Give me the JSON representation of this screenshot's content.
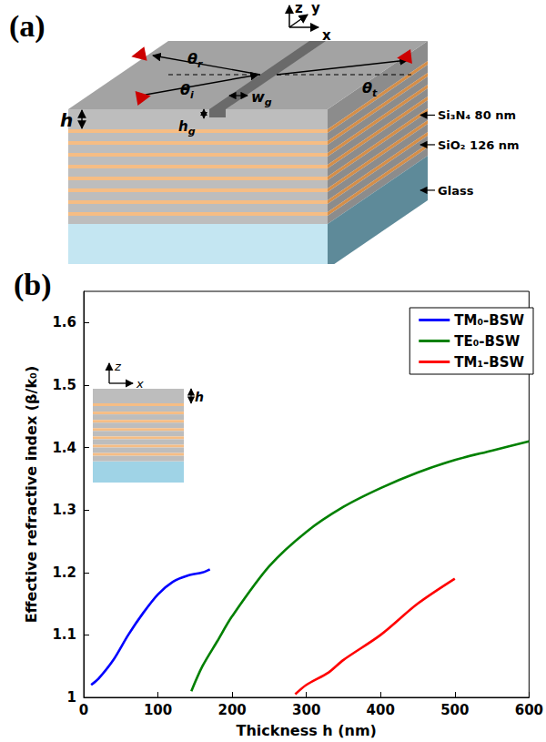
{
  "diagram": {
    "panel_label": "(a)",
    "axes": [
      "z",
      "y",
      "x"
    ],
    "symbols": {
      "theta_i": [
        "θ",
        "i"
      ],
      "theta_r": [
        "θ",
        "r"
      ],
      "theta_t": [
        "θ",
        "t"
      ],
      "w_g": [
        "w",
        "g"
      ],
      "h": [
        "h",
        ""
      ],
      "h_g": [
        "h",
        "g"
      ]
    },
    "layers": [
      "Si₃N₄ 80 nm",
      "SiO₂ 126 nm",
      "Glass"
    ]
  },
  "chart_data": {
    "type": "line",
    "title": "(b)",
    "x_label": "Thickness h (nm)",
    "y_label": "Effective refractive index (β/k₀)",
    "xlim": [
      0,
      600
    ],
    "xticks": [
      0,
      100,
      200,
      300,
      400,
      500,
      600
    ],
    "ylim": [
      1,
      1.65
    ],
    "yticks": [
      1,
      1.1,
      1.2,
      1.3,
      1.4,
      1.5,
      1.6
    ],
    "grid": false,
    "legend": "upper right",
    "annotations": [
      "z",
      "x",
      "h"
    ],
    "series": [
      {
        "name": "TM₀-BSW",
        "color": "#0000ff",
        "x": [
          10,
          20,
          40,
          60,
          80,
          100,
          120,
          140,
          160,
          170
        ],
        "values": [
          1.02,
          1.03,
          1.06,
          1.1,
          1.135,
          1.165,
          1.185,
          1.195,
          1.2,
          1.205
        ]
      },
      {
        "name": "TE₀-BSW",
        "color": "#008000",
        "x": [
          145,
          160,
          180,
          200,
          250,
          300,
          350,
          400,
          450,
          500,
          550,
          600
        ],
        "values": [
          1.01,
          1.05,
          1.09,
          1.13,
          1.21,
          1.265,
          1.305,
          1.335,
          1.36,
          1.38,
          1.395,
          1.41
        ]
      },
      {
        "name": "TM₁-BSW",
        "color": "#ff0000",
        "x": [
          285,
          300,
          330,
          350,
          400,
          450,
          500
        ],
        "values": [
          1.005,
          1.02,
          1.04,
          1.06,
          1.1,
          1.15,
          1.19
        ]
      }
    ]
  }
}
